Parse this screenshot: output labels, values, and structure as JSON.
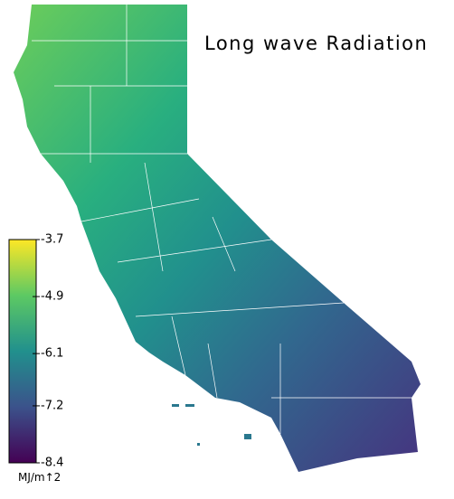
{
  "title": "Long wave Radiation",
  "colorbar": {
    "lim": [
      -8.4,
      -3.7
    ],
    "ticks": [
      -3.7,
      -4.9,
      -6.1,
      -7.2,
      -8.4
    ],
    "unit": "MJ/m↑2",
    "colors": [
      "#440154",
      "#3b528b",
      "#21908d",
      "#5dc963",
      "#fde725"
    ]
  }
}
